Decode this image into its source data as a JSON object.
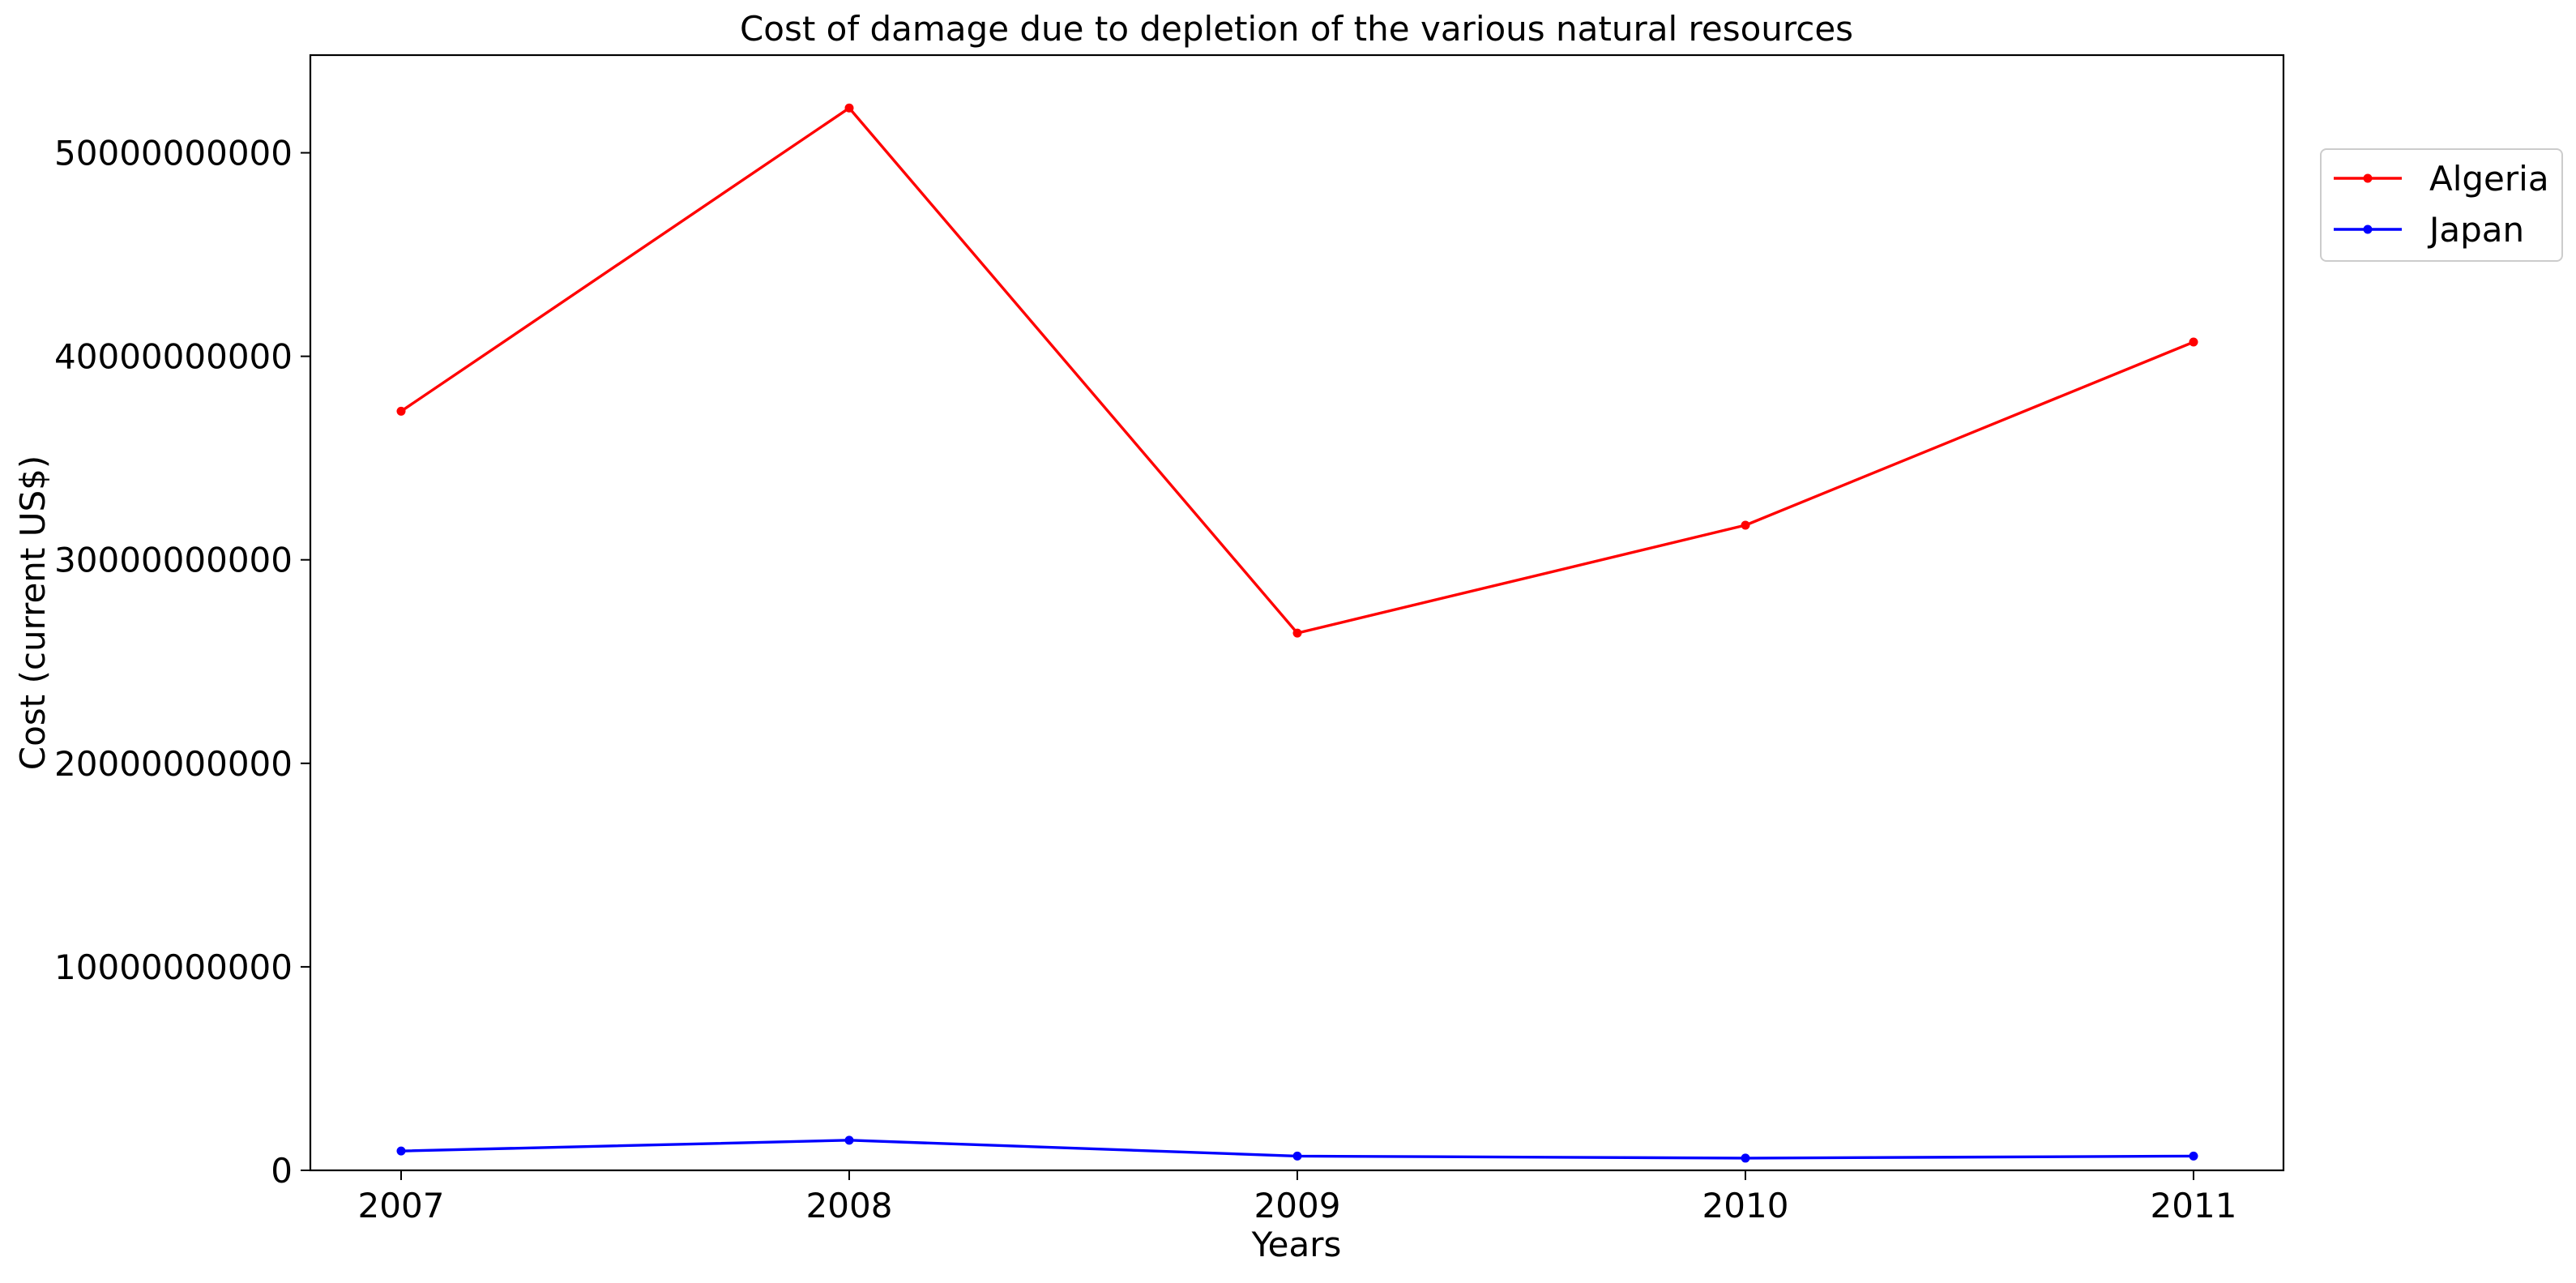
{
  "chart_data": {
    "type": "line",
    "title": "Cost of damage due to depletion of the various natural resources",
    "xlabel": "Years",
    "ylabel": "Cost (current US$)",
    "categories": [
      "2007",
      "2008",
      "2009",
      "2010",
      "2011"
    ],
    "ylim": [
      0,
      54800000000
    ],
    "yticks": [
      0,
      10000000000,
      20000000000,
      30000000000,
      40000000000,
      50000000000
    ],
    "ytick_labels": [
      "0",
      "10000000000",
      "20000000000",
      "30000000000",
      "40000000000",
      "50000000000"
    ],
    "grid": false,
    "legend_position": "upper right, outside plot area",
    "series": [
      {
        "name": "Algeria",
        "color": "#ff0000",
        "values": [
          37300000000,
          52200000000,
          26400000000,
          31700000000,
          40700000000
        ]
      },
      {
        "name": "Japan",
        "color": "#0000ff",
        "values": [
          950000000,
          1480000000,
          700000000,
          600000000,
          700000000
        ]
      }
    ]
  }
}
